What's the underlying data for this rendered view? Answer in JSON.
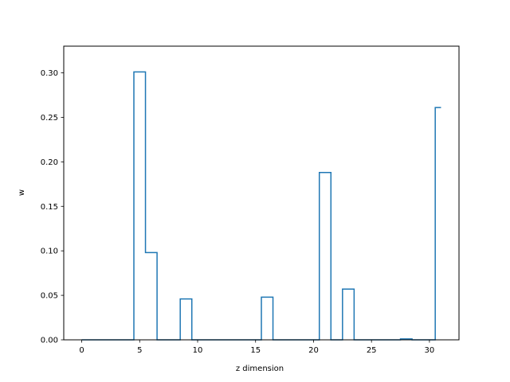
{
  "chart_data": {
    "type": "line",
    "step": "mid",
    "xlabel": "z dimension",
    "ylabel": "w",
    "xlim": [
      -1.55,
      32.55
    ],
    "ylim": [
      0,
      0.33
    ],
    "xticks": [
      0,
      5,
      10,
      15,
      20,
      25,
      30
    ],
    "yticks": [
      0.0,
      0.05,
      0.1,
      0.15,
      0.2,
      0.25,
      0.3
    ],
    "xtick_labels": [
      "0",
      "5",
      "10",
      "15",
      "20",
      "25",
      "30"
    ],
    "ytick_labels": [
      "0.00",
      "0.05",
      "0.10",
      "0.15",
      "0.20",
      "0.25",
      "0.30"
    ],
    "grid": false,
    "color": "#1f77b4",
    "series": [
      {
        "x": [
          0,
          1,
          2,
          3,
          4,
          5,
          6,
          7,
          8,
          9,
          10,
          11,
          12,
          13,
          14,
          15,
          16,
          17,
          18,
          19,
          20,
          21,
          22,
          23,
          24,
          25,
          26,
          27,
          28,
          29,
          30,
          31
        ],
        "values": [
          0,
          0,
          0,
          0,
          0,
          0.301,
          0.098,
          0,
          0,
          0.046,
          0,
          0,
          0,
          0,
          0,
          0,
          0.048,
          0,
          0,
          0,
          0,
          0.188,
          0,
          0.057,
          0,
          0,
          0,
          0,
          0.001,
          0,
          0,
          0.261
        ]
      }
    ]
  }
}
